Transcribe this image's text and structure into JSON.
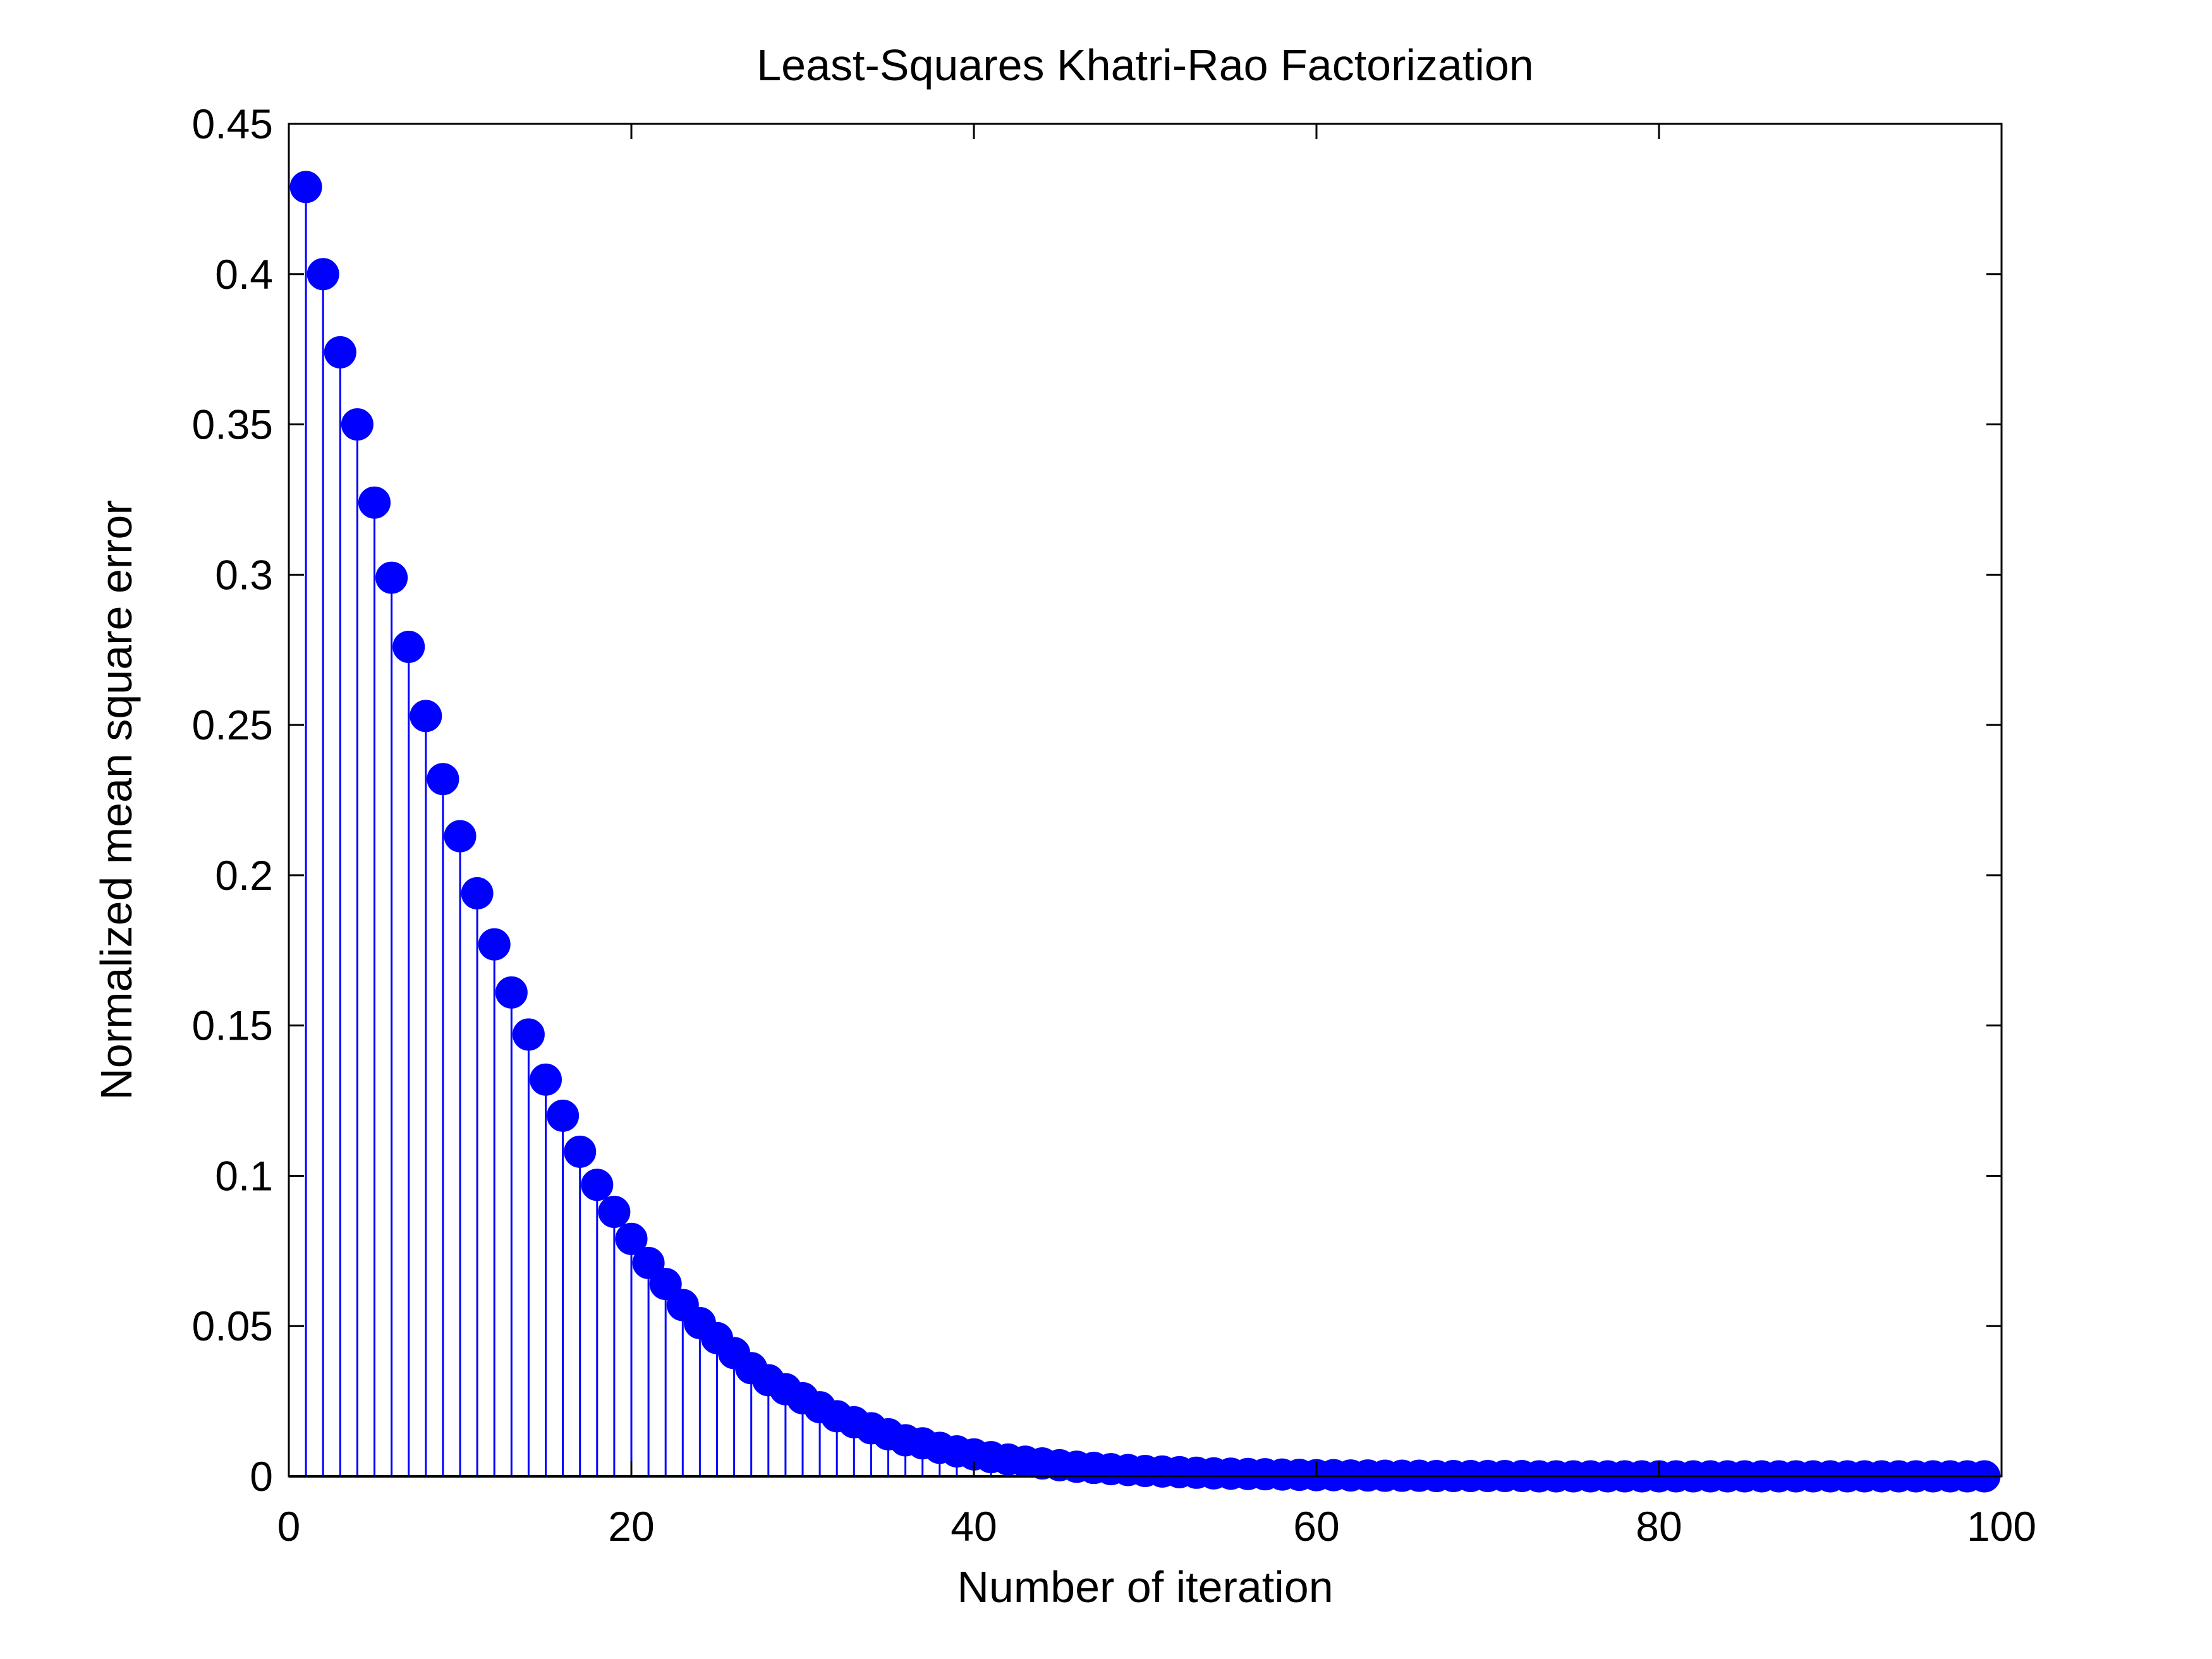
{
  "chart_data": {
    "type": "scatter",
    "style": "stem",
    "title": "Least-Squares Khatri-Rao Factorization",
    "xlabel": "Number of iteration",
    "ylabel": "Normalized mean square error",
    "xlim": [
      0,
      100
    ],
    "ylim": [
      0,
      0.45
    ],
    "xticks": [
      0,
      20,
      40,
      60,
      80,
      100
    ],
    "xtick_labels": [
      "0",
      "20",
      "40",
      "60",
      "80",
      "100"
    ],
    "yticks": [
      0,
      0.05,
      0.1,
      0.15,
      0.2,
      0.25,
      0.3,
      0.35,
      0.4,
      0.45
    ],
    "ytick_labels": [
      "0",
      "0.05",
      "0.1",
      "0.15",
      "0.2",
      "0.25",
      "0.3",
      "0.35",
      "0.4",
      "0.45"
    ],
    "grid": false,
    "legend": "none",
    "marker_color": "#0000ff",
    "x": [
      1,
      2,
      3,
      4,
      5,
      6,
      7,
      8,
      9,
      10,
      11,
      12,
      13,
      14,
      15,
      16,
      17,
      18,
      19,
      20,
      21,
      22,
      23,
      24,
      25,
      26,
      27,
      28,
      29,
      30,
      31,
      32,
      33,
      34,
      35,
      36,
      37,
      38,
      39,
      40,
      41,
      42,
      43,
      44,
      45,
      46,
      47,
      48,
      49,
      50,
      51,
      52,
      53,
      54,
      55,
      56,
      57,
      58,
      59,
      60,
      61,
      62,
      63,
      64,
      65,
      66,
      67,
      68,
      69,
      70,
      71,
      72,
      73,
      74,
      75,
      76,
      77,
      78,
      79,
      80,
      81,
      82,
      83,
      84,
      85,
      86,
      87,
      88,
      89,
      90,
      91,
      92,
      93,
      94,
      95,
      96,
      97,
      98,
      99
    ],
    "y": [
      0.429,
      0.4,
      0.374,
      0.35,
      0.324,
      0.299,
      0.276,
      0.253,
      0.232,
      0.213,
      0.194,
      0.177,
      0.161,
      0.147,
      0.132,
      0.12,
      0.108,
      0.097,
      0.088,
      0.079,
      0.071,
      0.064,
      0.057,
      0.051,
      0.046,
      0.041,
      0.036,
      0.032,
      0.029,
      0.026,
      0.023,
      0.02,
      0.018,
      0.016,
      0.014,
      0.012,
      0.011,
      0.0095,
      0.0083,
      0.0073,
      0.0064,
      0.0056,
      0.0049,
      0.0043,
      0.0037,
      0.0032,
      0.0028,
      0.0024,
      0.0021,
      0.0018,
      0.0016,
      0.0014,
      0.0012,
      0.001,
      0.0009,
      0.0008,
      0.0007,
      0.0006,
      0.0005,
      0.0004,
      0.0004,
      0.0003,
      0.0003,
      0.0002,
      0.0002,
      0.0002,
      0.0001,
      0.0001,
      0.0001,
      0.0001,
      0.0001,
      0.0001,
      0,
      0,
      0,
      0,
      0,
      0,
      0,
      0,
      0,
      0,
      0,
      0,
      0,
      0,
      0,
      0,
      0,
      0,
      0,
      0,
      0,
      0,
      0,
      0,
      0,
      0,
      0
    ]
  }
}
